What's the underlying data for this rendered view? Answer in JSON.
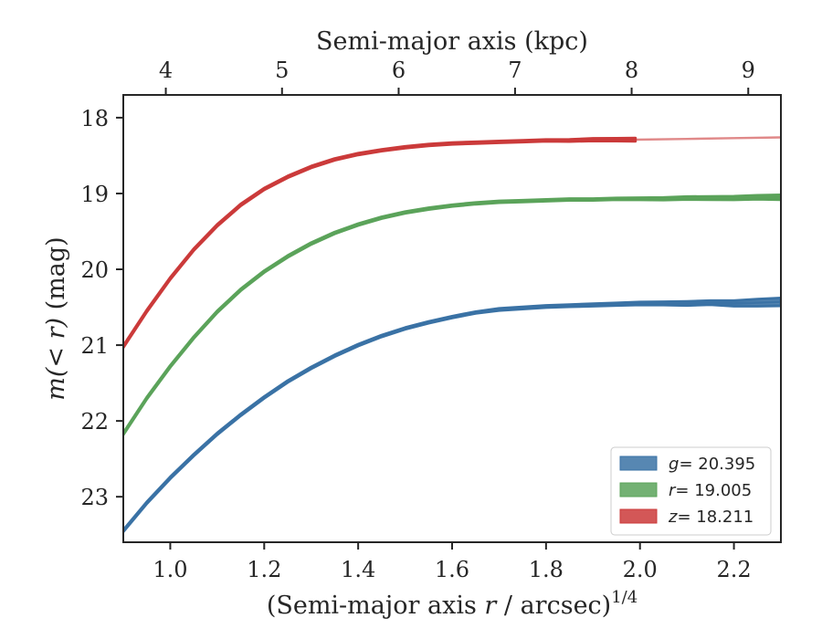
{
  "chart_data": {
    "type": "line",
    "title": "",
    "xlabel_prefix": "(Semi-major axis ",
    "xlabel_var": "r",
    "xlabel_suffix": " / arcsec)",
    "xlabel_sup": "1/4",
    "ylabel_var": "m",
    "ylabel_math": "(< r)",
    "ylabel_unit": " (mag)",
    "top_xlabel": "Semi-major axis (kpc)",
    "xlim": [
      0.9,
      2.3
    ],
    "ylim": [
      23.6,
      17.7
    ],
    "y_inverted": true,
    "x_ticks": [
      1.0,
      1.2,
      1.4,
      1.6,
      1.8,
      2.0,
      2.2
    ],
    "x_tick_labels": [
      "1.0",
      "1.2",
      "1.4",
      "1.6",
      "1.8",
      "2.0",
      "2.2"
    ],
    "y_ticks": [
      18,
      19,
      20,
      21,
      22,
      23
    ],
    "y_tick_labels": [
      "18",
      "19",
      "20",
      "21",
      "22",
      "23"
    ],
    "top_ticks": [
      {
        "kpc": 4,
        "x": 0.9905,
        "label": "4"
      },
      {
        "kpc": 5,
        "x": 1.2379,
        "label": "5"
      },
      {
        "kpc": 6,
        "x": 1.4862,
        "label": "6"
      },
      {
        "kpc": 7,
        "x": 1.734,
        "label": "7"
      },
      {
        "kpc": 8,
        "x": 1.9822,
        "label": "8"
      },
      {
        "kpc": 9,
        "x": 2.2305,
        "label": "9"
      }
    ],
    "legend_position": "lower-right",
    "grid": false,
    "series": [
      {
        "band": "g",
        "label": "= 20.395",
        "color": "#3a72a5",
        "x": [
          0.9,
          0.95,
          1.0,
          1.05,
          1.1,
          1.15,
          1.2,
          1.25,
          1.3,
          1.35,
          1.4,
          1.45,
          1.5,
          1.55,
          1.6,
          1.65,
          1.7,
          1.75,
          1.8,
          1.85,
          1.9,
          1.95,
          2.0,
          2.05,
          2.1,
          2.15,
          2.2,
          2.25,
          2.3
        ],
        "y": [
          23.45,
          23.08,
          22.75,
          22.45,
          22.17,
          21.92,
          21.69,
          21.48,
          21.3,
          21.14,
          21.0,
          20.88,
          20.78,
          20.7,
          20.63,
          20.57,
          20.53,
          20.51,
          20.49,
          20.48,
          20.47,
          20.46,
          20.45,
          20.45,
          20.45,
          20.44,
          20.45,
          20.44,
          20.43
        ],
        "band_width": [
          0.02,
          0.02,
          0.02,
          0.02,
          0.02,
          0.02,
          0.02,
          0.02,
          0.02,
          0.02,
          0.02,
          0.02,
          0.02,
          0.02,
          0.02,
          0.02,
          0.025,
          0.025,
          0.025,
          0.025,
          0.03,
          0.03,
          0.035,
          0.04,
          0.05,
          0.05,
          0.07,
          0.09,
          0.1
        ]
      },
      {
        "band": "r",
        "label": "= 19.005",
        "color": "#5ba35a",
        "x": [
          0.9,
          0.95,
          1.0,
          1.05,
          1.1,
          1.15,
          1.2,
          1.25,
          1.3,
          1.35,
          1.4,
          1.45,
          1.5,
          1.55,
          1.6,
          1.65,
          1.7,
          1.75,
          1.8,
          1.85,
          1.9,
          1.95,
          2.0,
          2.05,
          2.1,
          2.15,
          2.2,
          2.25,
          2.3
        ],
        "y": [
          22.17,
          21.7,
          21.28,
          20.9,
          20.56,
          20.27,
          20.03,
          19.83,
          19.66,
          19.52,
          19.41,
          19.32,
          19.25,
          19.2,
          19.16,
          19.13,
          19.11,
          19.1,
          19.09,
          19.08,
          19.08,
          19.07,
          19.07,
          19.07,
          19.06,
          19.06,
          19.06,
          19.05,
          19.05
        ],
        "band_width": [
          0.02,
          0.02,
          0.02,
          0.02,
          0.02,
          0.02,
          0.02,
          0.02,
          0.02,
          0.02,
          0.02,
          0.02,
          0.02,
          0.02,
          0.02,
          0.02,
          0.02,
          0.02,
          0.02,
          0.02,
          0.02,
          0.02,
          0.025,
          0.03,
          0.035,
          0.04,
          0.045,
          0.05,
          0.06
        ]
      },
      {
        "band": "z",
        "label": "= 18.211",
        "color": "#cb3a3a",
        "x": [
          0.9,
          0.95,
          1.0,
          1.05,
          1.1,
          1.15,
          1.2,
          1.25,
          1.3,
          1.35,
          1.4,
          1.45,
          1.5,
          1.55,
          1.6,
          1.65,
          1.7,
          1.75,
          1.8,
          1.85,
          1.9,
          1.95,
          1.99
        ],
        "y": [
          21.02,
          20.55,
          20.12,
          19.74,
          19.42,
          19.15,
          18.94,
          18.78,
          18.65,
          18.55,
          18.48,
          18.43,
          18.39,
          18.36,
          18.34,
          18.33,
          18.32,
          18.31,
          18.3,
          18.3,
          18.29,
          18.29,
          18.29
        ],
        "band_width": [
          0.02,
          0.02,
          0.02,
          0.02,
          0.02,
          0.02,
          0.02,
          0.02,
          0.02,
          0.02,
          0.02,
          0.02,
          0.02,
          0.02,
          0.02,
          0.02,
          0.02,
          0.02,
          0.02,
          0.025,
          0.03,
          0.035,
          0.04
        ],
        "extension_x": [
          1.99,
          2.1,
          2.2,
          2.3
        ],
        "extension_y": [
          18.29,
          18.28,
          18.27,
          18.26
        ]
      }
    ]
  }
}
